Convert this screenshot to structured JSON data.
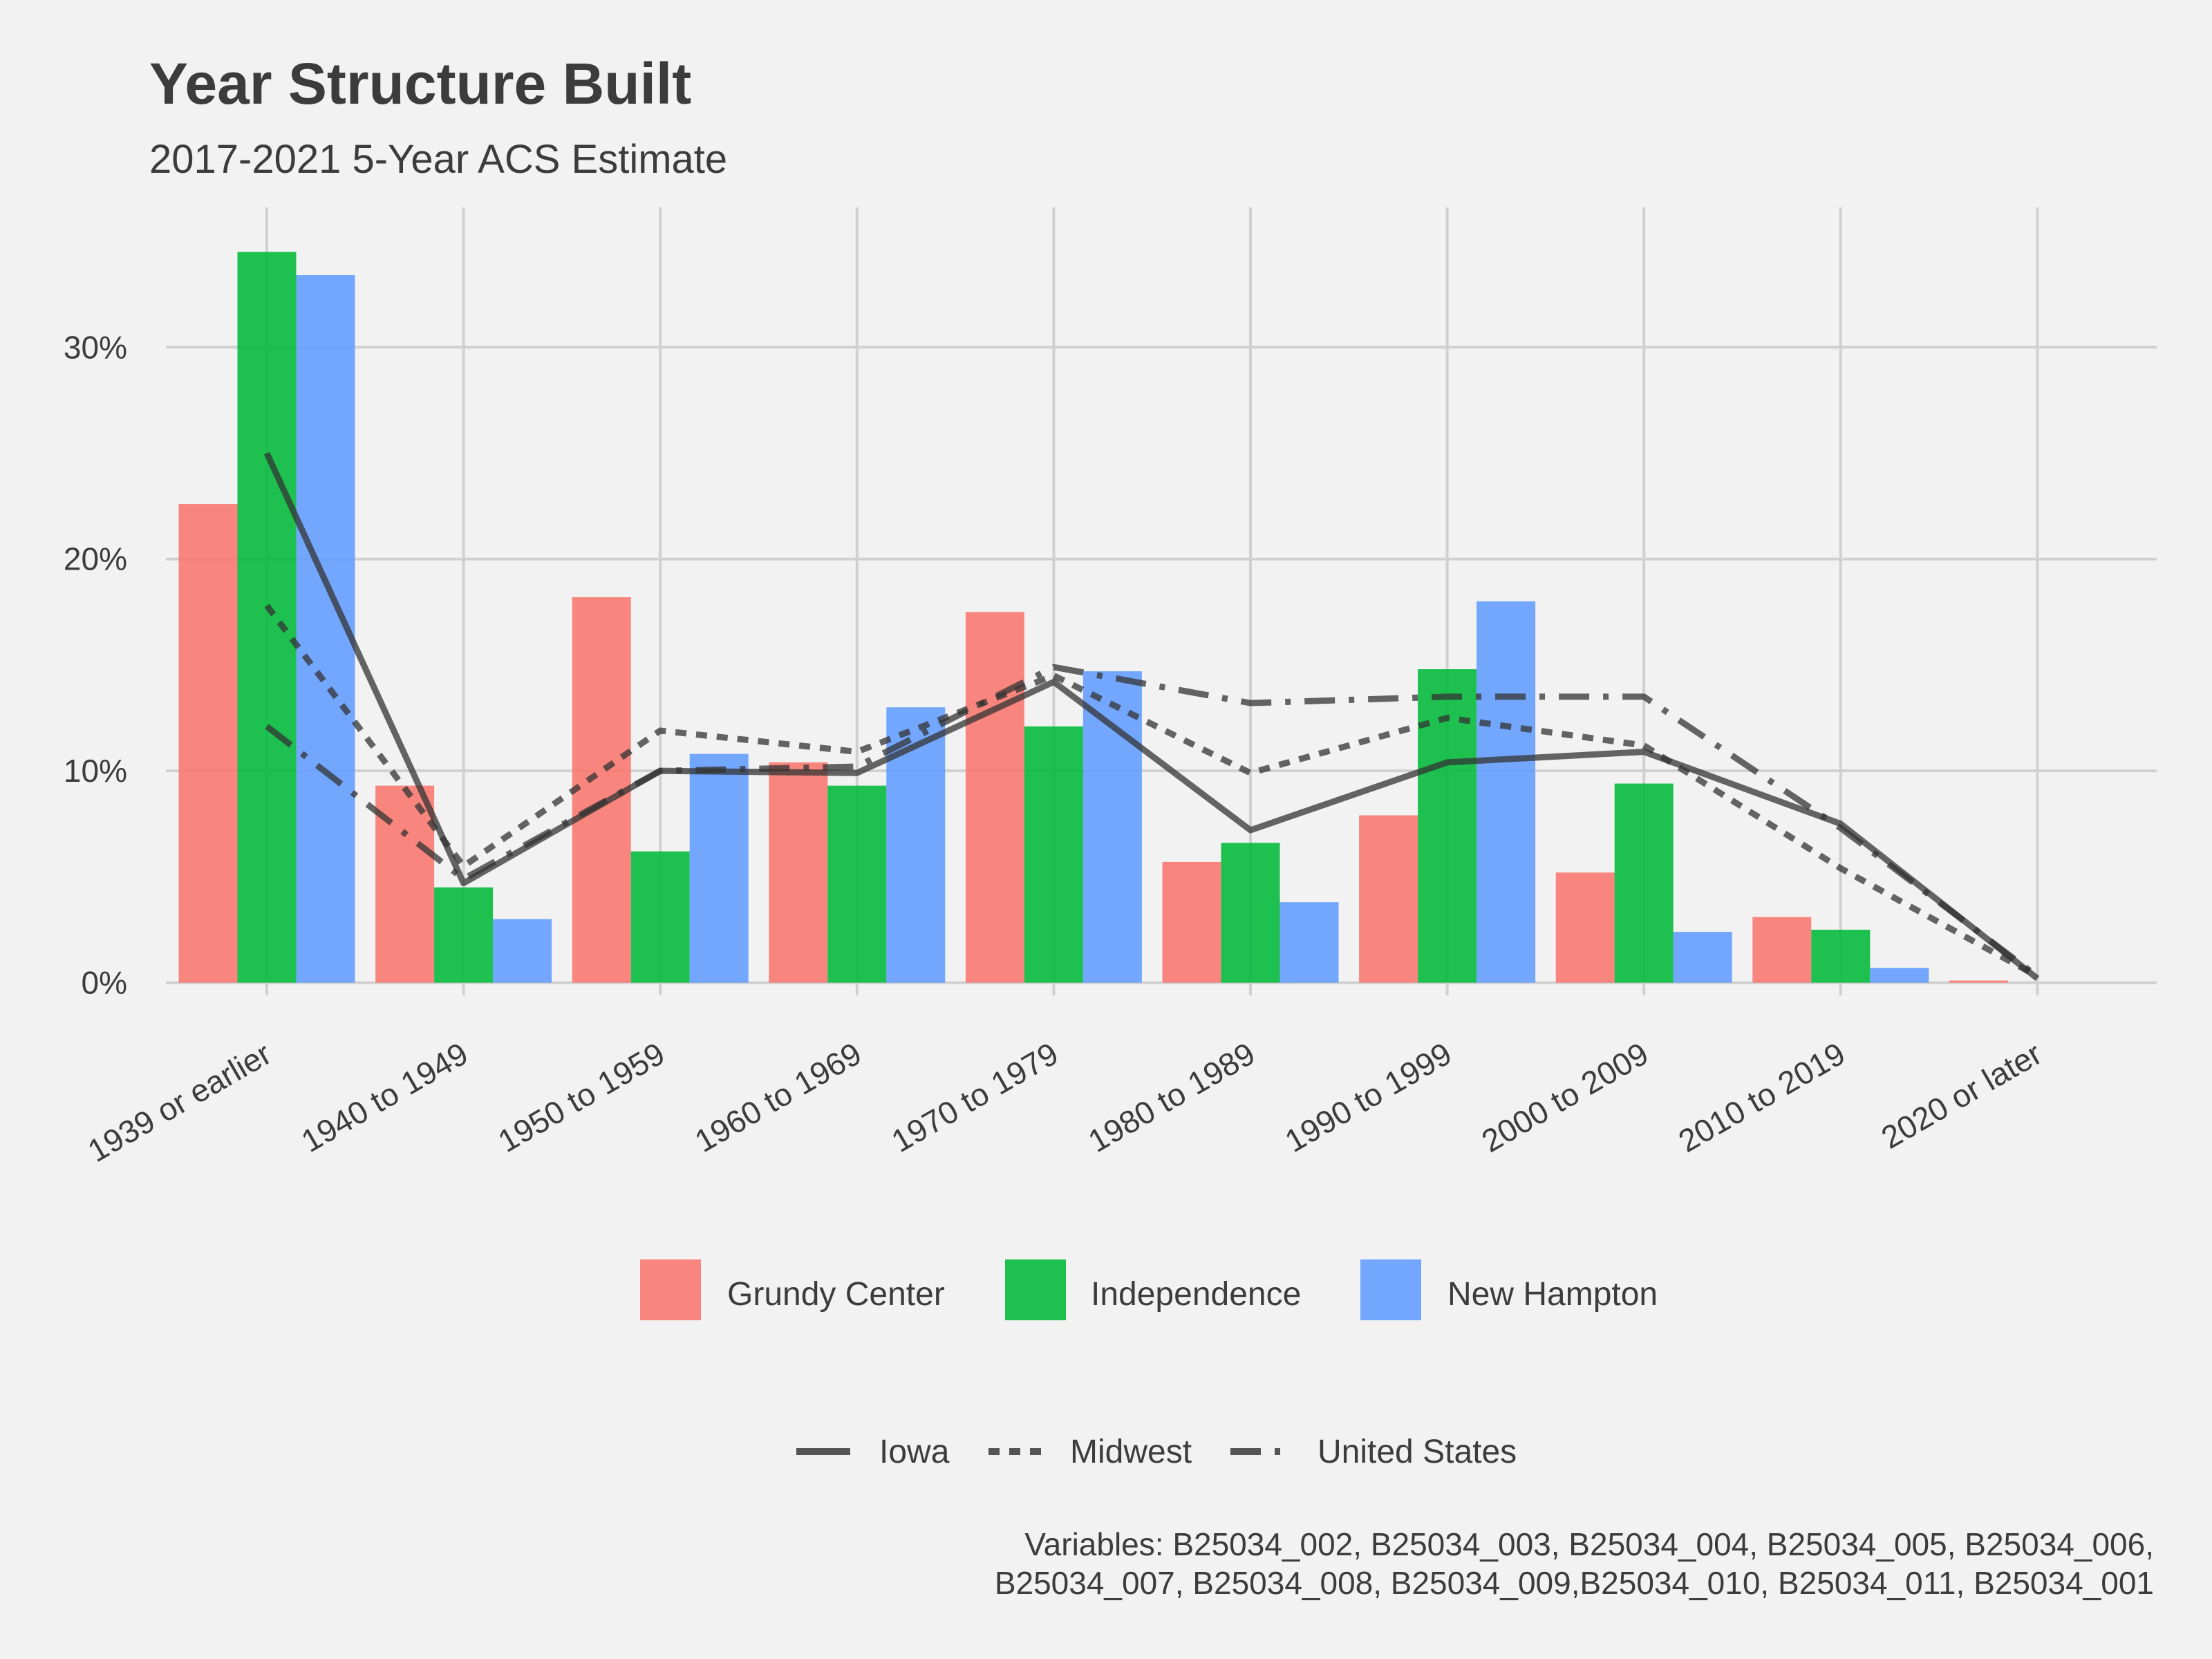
{
  "chart_data": {
    "type": "bar",
    "title": "Year Structure Built",
    "subtitle": "2017-2021 5-Year ACS Estimate",
    "xlabel": "",
    "ylabel": "",
    "y_tick_labels": [
      "0%",
      "10%",
      "20%",
      "30%"
    ],
    "y_ticks": [
      0,
      10,
      20,
      30
    ],
    "ylim": [
      -0.6,
      36.6
    ],
    "grid": true,
    "legend_position": "bottom",
    "categories": [
      "1939 or earlier",
      "1940 to 1949",
      "1950 to 1959",
      "1960 to 1969",
      "1970 to 1979",
      "1980 to 1989",
      "1990 to 1999",
      "2000 to 2009",
      "2010 to 2019",
      "2020 or later"
    ],
    "series": [
      {
        "name": "Grundy Center",
        "color": "#f8766d",
        "values": [
          22.6,
          9.3,
          18.2,
          10.4,
          17.5,
          5.7,
          7.9,
          5.2,
          3.1,
          0.1
        ]
      },
      {
        "name": "Independence",
        "color": "#00ba38",
        "values": [
          34.5,
          4.5,
          6.2,
          9.3,
          12.1,
          6.6,
          14.8,
          9.4,
          2.5,
          0.0
        ]
      },
      {
        "name": "New Hampton",
        "color": "#619cff",
        "values": [
          33.4,
          3.0,
          10.8,
          13.0,
          14.7,
          3.8,
          18.0,
          2.4,
          0.7,
          0.0
        ]
      }
    ],
    "reference_lines": [
      {
        "name": "Iowa",
        "dash": "solid",
        "values": [
          25.0,
          4.7,
          10.0,
          9.9,
          14.2,
          7.2,
          10.4,
          10.9,
          7.5,
          0.2
        ]
      },
      {
        "name": "Midwest",
        "dash": "dotted",
        "values": [
          17.8,
          5.5,
          11.9,
          10.9,
          14.5,
          9.9,
          12.5,
          11.2,
          5.4,
          0.3
        ]
      },
      {
        "name": "United States",
        "dash": "dashed",
        "values": [
          12.1,
          4.9,
          10.0,
          10.2,
          14.9,
          13.2,
          13.5,
          13.5,
          7.3,
          0.3
        ]
      }
    ],
    "caption_lines": [
      "Variables: B25034_002, B25034_003, B25034_004, B25034_005, B25034_006,",
      "B25034_007, B25034_008, B25034_009,B25034_010, B25034_011, B25034_001"
    ]
  }
}
